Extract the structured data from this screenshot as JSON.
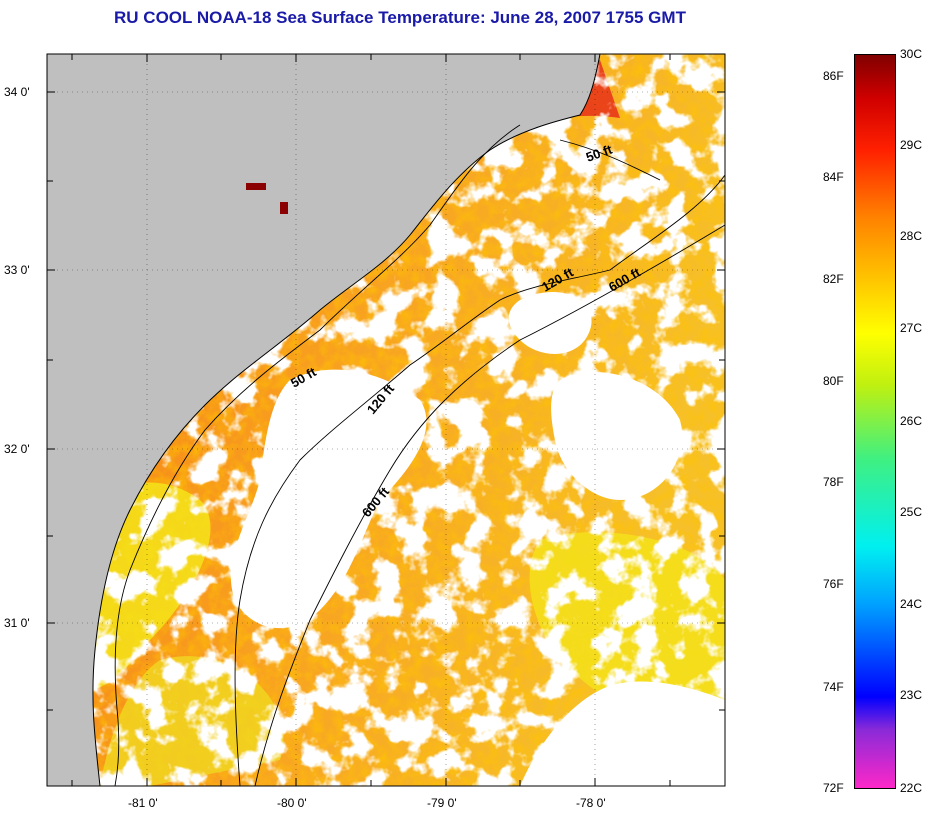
{
  "title": "RU COOL  NOAA-18  Sea Surface Temperature:  June 28, 2007 1755 GMT",
  "map": {
    "lon_labels": [
      "-81 0'",
      "-80 0'",
      "-79 0'",
      "-78 0'"
    ],
    "lat_labels": [
      "34 0'",
      "33 0'",
      "32 0'",
      "31 0'"
    ],
    "contour_labels": [
      "50 ft",
      "120 ft",
      "600 ft",
      "50 ft",
      "120 ft",
      "600 ft"
    ],
    "colors": {
      "land": "#bfbfbf",
      "cloud": "#ffffff",
      "warm_red": "#e8201a",
      "orange": "#f47a12",
      "yellow_orange": "#f8b020",
      "yellow": "#f4e41a",
      "dark_red": "#8b0000"
    }
  },
  "colorbar": {
    "fahrenheit_labels": [
      "86F",
      "84F",
      "82F",
      "80F",
      "78F",
      "76F",
      "74F",
      "72F"
    ],
    "celsius_labels": [
      "30C",
      "29C",
      "28C",
      "27C",
      "26C",
      "25C",
      "24C",
      "23C",
      "22C"
    ],
    "stops": [
      "#ff28c8",
      "#6a2cd8",
      "#0000ff",
      "#00a0ff",
      "#00f0f0",
      "#30f090",
      "#a0f020",
      "#ffff00",
      "#ffc000",
      "#ff8000",
      "#ff2000",
      "#e00000",
      "#800000"
    ]
  }
}
